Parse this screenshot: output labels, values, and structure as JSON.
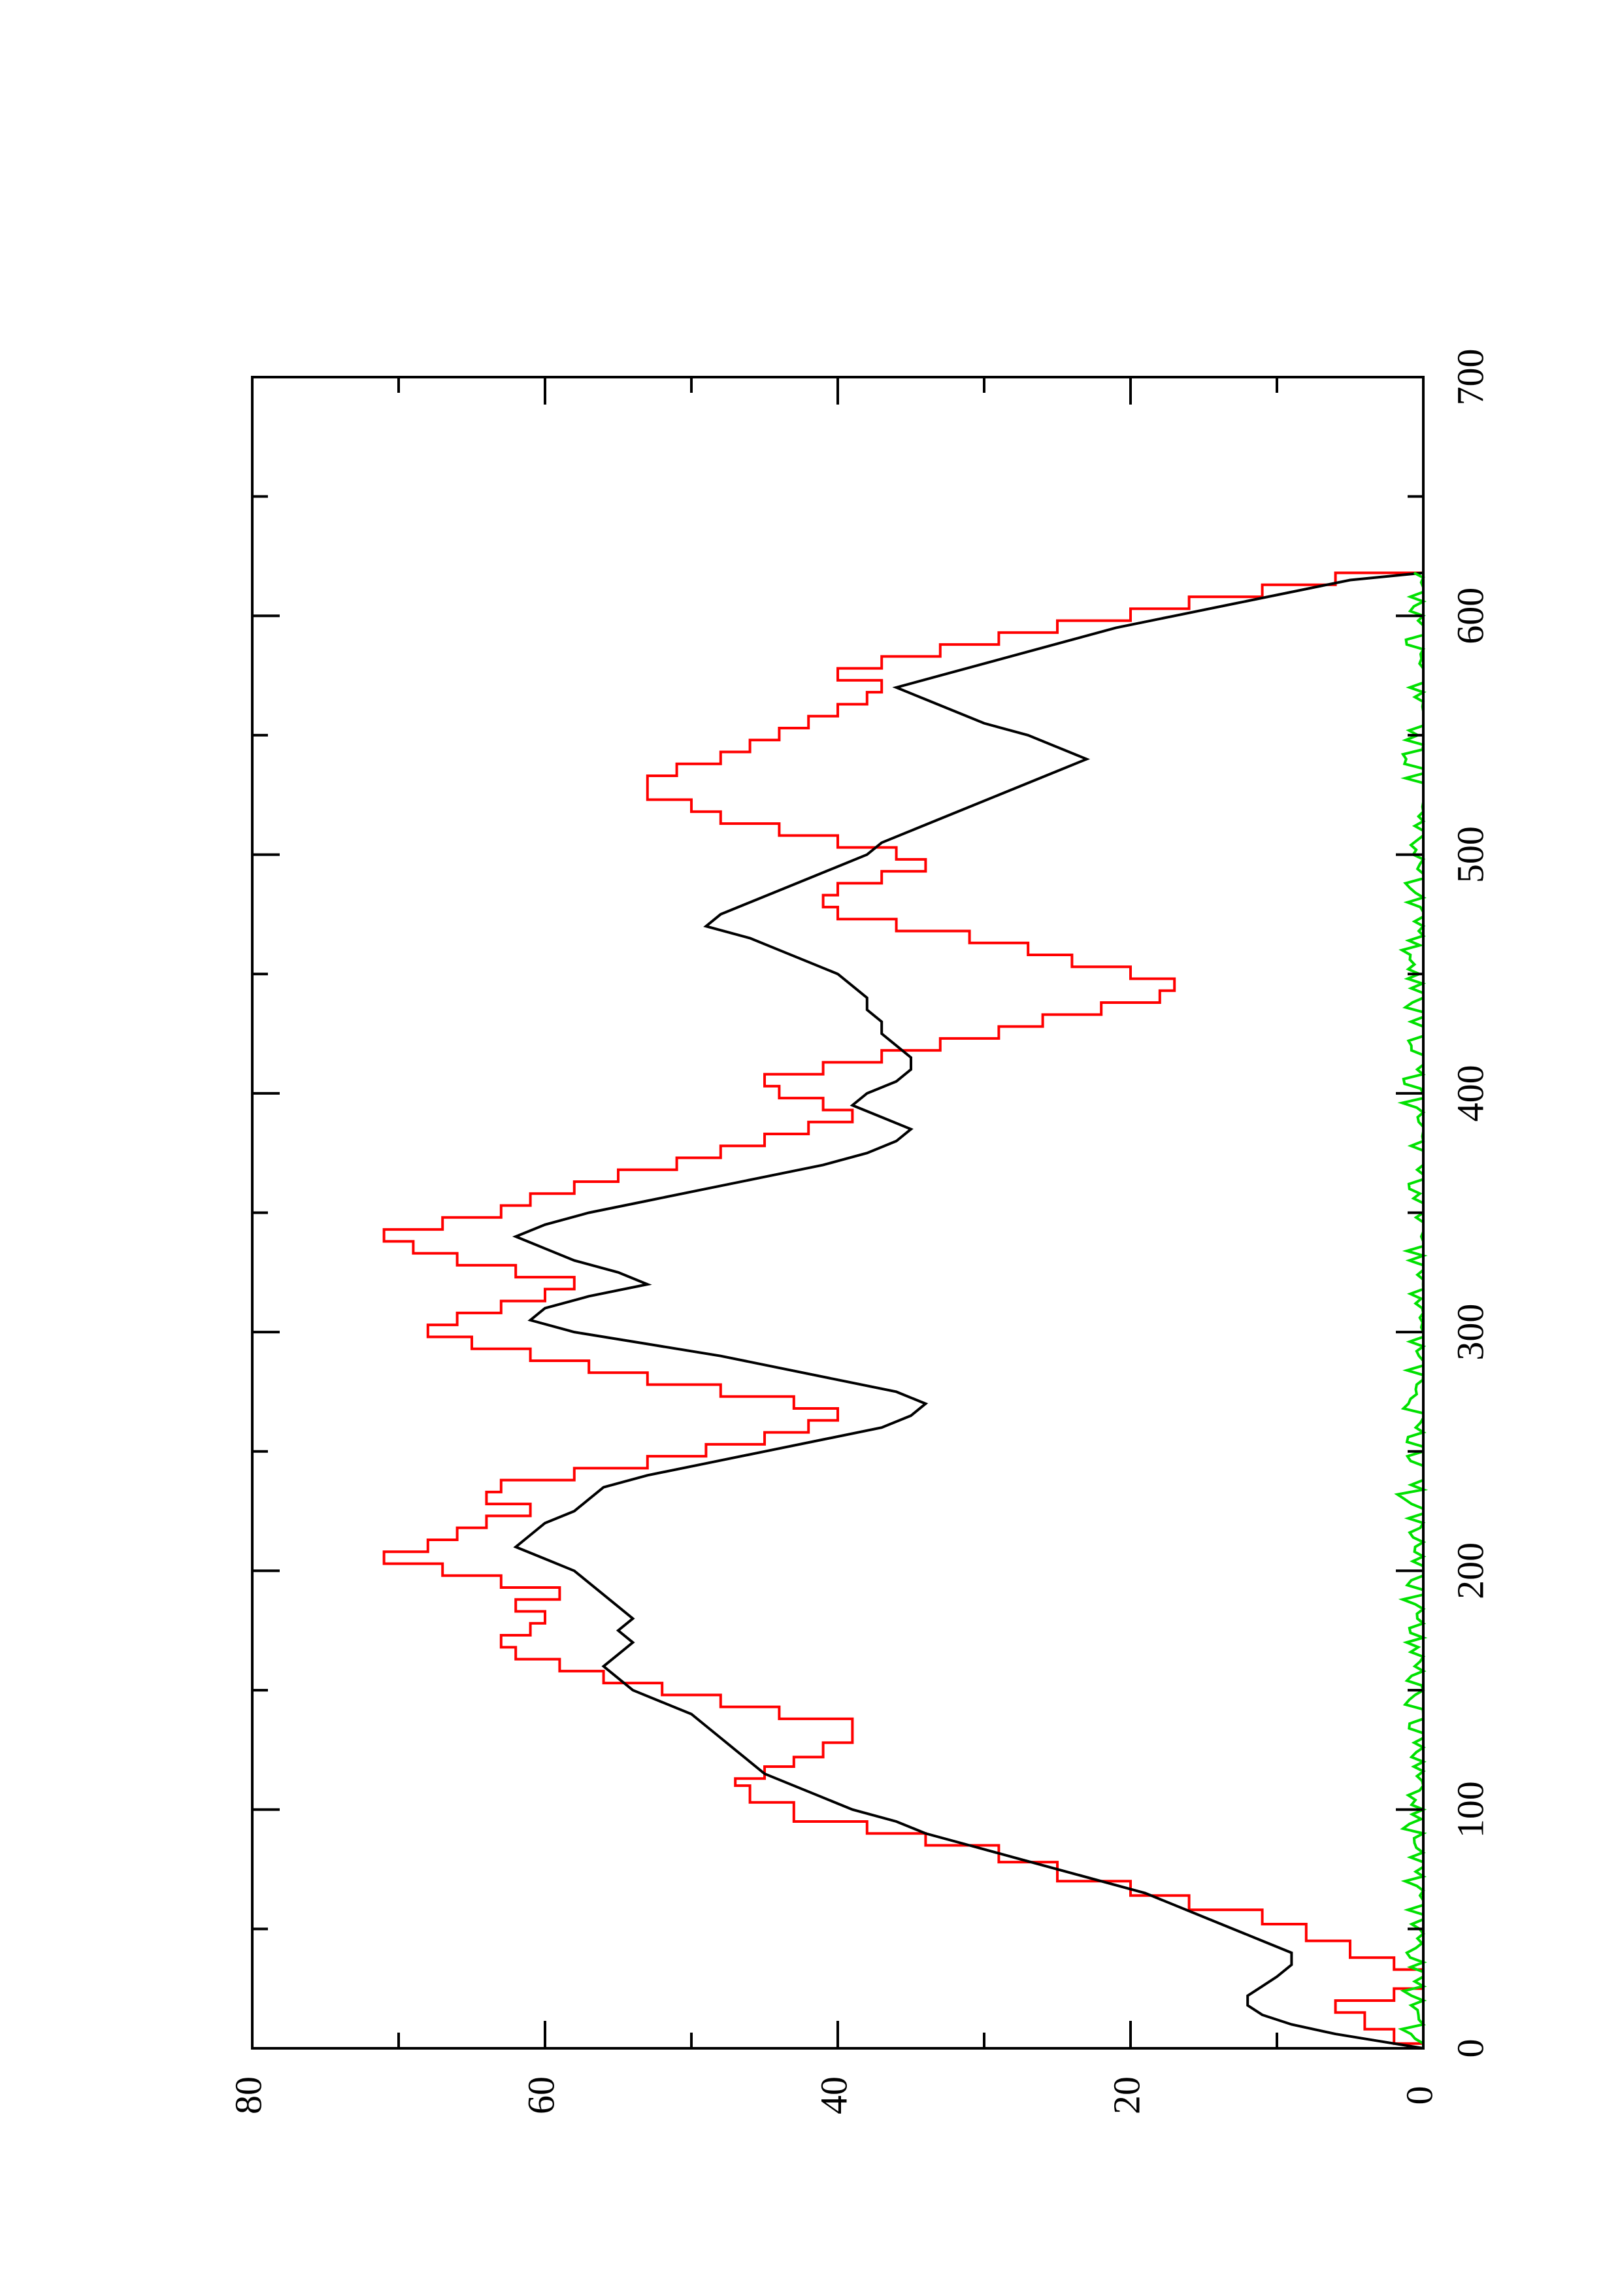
{
  "chart_data": {
    "type": "line",
    "orientation": "rotated-90-ccw",
    "x_ticks": [
      "0",
      "100",
      "200",
      "300",
      "400",
      "500",
      "600",
      "700"
    ],
    "y_ticks": [
      "0",
      "20",
      "40",
      "60",
      "80"
    ],
    "xlim": [
      0,
      700
    ],
    "ylim": [
      0,
      80
    ],
    "grid": false,
    "colors": {
      "black": "#000000",
      "red": "#ff0000",
      "green": "#00e000"
    },
    "series": [
      {
        "color": "#ff0000",
        "step": true,
        "x": [
          0,
          2,
          8,
          15,
          20,
          25,
          33,
          38,
          45,
          52,
          58,
          64,
          70,
          78,
          85,
          90,
          95,
          103,
          110,
          113,
          118,
          122,
          128,
          133,
          138,
          143,
          148,
          153,
          158,
          163,
          168,
          173,
          178,
          183,
          188,
          193,
          198,
          203,
          208,
          213,
          218,
          223,
          228,
          233,
          238,
          243,
          248,
          253,
          258,
          263,
          268,
          273,
          278,
          283,
          288,
          293,
          298,
          303,
          308,
          313,
          318,
          323,
          328,
          333,
          338,
          343,
          348,
          353,
          358,
          363,
          368,
          373,
          378,
          383,
          388,
          393,
          398,
          403,
          408,
          413,
          418,
          423,
          428,
          433,
          438,
          443,
          448,
          453,
          458,
          463,
          468,
          473,
          478,
          483,
          488,
          493,
          498,
          503,
          508,
          513,
          518,
          523,
          528,
          533,
          538,
          543,
          548,
          553,
          558,
          563,
          568,
          573,
          578,
          583,
          588,
          593,
          598,
          603,
          608,
          613,
          618
        ],
        "y": [
          0,
          2,
          4,
          6,
          2,
          0,
          2,
          5,
          8,
          11,
          16,
          20,
          25,
          29,
          34,
          38,
          43,
          46,
          47,
          45,
          43,
          41,
          39,
          39,
          44,
          48,
          52,
          56,
          59,
          62,
          63,
          61,
          60,
          62,
          59,
          63,
          67,
          71,
          68,
          66,
          64,
          61,
          64,
          63,
          58,
          53,
          49,
          45,
          42,
          40,
          43,
          48,
          53,
          57,
          61,
          65,
          68,
          66,
          63,
          60,
          58,
          62,
          66,
          69,
          71,
          67,
          63,
          61,
          58,
          55,
          51,
          48,
          45,
          42,
          39,
          41,
          44,
          45,
          41,
          37,
          33,
          29,
          26,
          22,
          18,
          17,
          20,
          24,
          27,
          31,
          36,
          40,
          41,
          40,
          37,
          34,
          36,
          40,
          44,
          48,
          50,
          53,
          53,
          51,
          48,
          46,
          44,
          42,
          40,
          38,
          37,
          40,
          37,
          33,
          29,
          25,
          20,
          16,
          11,
          6,
          0
        ]
      },
      {
        "color": "#000000",
        "step": false,
        "x": [
          0,
          3,
          6,
          10,
          14,
          18,
          22,
          26,
          30,
          35,
          40,
          45,
          50,
          55,
          60,
          65,
          70,
          75,
          80,
          85,
          90,
          95,
          100,
          105,
          110,
          115,
          120,
          125,
          130,
          135,
          140,
          145,
          150,
          155,
          160,
          165,
          170,
          175,
          180,
          185,
          190,
          195,
          200,
          205,
          210,
          215,
          220,
          225,
          230,
          235,
          240,
          245,
          250,
          255,
          260,
          265,
          270,
          275,
          280,
          285,
          290,
          295,
          300,
          305,
          310,
          315,
          320,
          325,
          330,
          335,
          340,
          345,
          350,
          355,
          360,
          365,
          370,
          375,
          380,
          385,
          390,
          395,
          400,
          405,
          410,
          415,
          420,
          425,
          430,
          435,
          440,
          445,
          450,
          455,
          460,
          465,
          470,
          475,
          480,
          485,
          490,
          495,
          500,
          505,
          510,
          515,
          520,
          525,
          530,
          535,
          540,
          545,
          550,
          555,
          560,
          565,
          570,
          575,
          580,
          585,
          590,
          595,
          600,
          605,
          610,
          615,
          618
        ],
        "y": [
          0,
          3,
          6,
          9,
          11,
          12,
          12,
          11,
          10,
          9,
          9,
          11,
          13,
          15,
          17,
          19,
          22,
          25,
          28,
          31,
          34,
          36,
          39,
          41,
          43,
          45,
          46,
          47,
          48,
          49,
          50,
          52,
          54,
          55,
          56,
          55,
          54,
          55,
          54,
          55,
          56,
          57,
          58,
          60,
          62,
          61,
          60,
          58,
          57,
          56,
          53,
          49,
          45,
          41,
          37,
          35,
          34,
          36,
          40,
          44,
          48,
          53,
          58,
          61,
          60,
          57,
          53,
          55,
          58,
          60,
          62,
          60,
          57,
          53,
          49,
          45,
          41,
          38,
          36,
          35,
          37,
          39,
          38,
          36,
          35,
          35,
          36,
          37,
          37,
          38,
          38,
          39,
          40,
          42,
          44,
          46,
          49,
          48,
          46,
          44,
          42,
          40,
          38,
          37,
          35,
          33,
          31,
          29,
          27,
          25,
          23,
          25,
          27,
          30,
          32,
          34,
          36,
          33,
          30,
          27,
          24,
          21,
          17,
          13,
          9,
          5,
          0
        ]
      },
      {
        "color": "#00e000",
        "step": false,
        "noise": true,
        "x_start": 0,
        "x_end": 618,
        "amplitude": 1.2
      }
    ]
  }
}
